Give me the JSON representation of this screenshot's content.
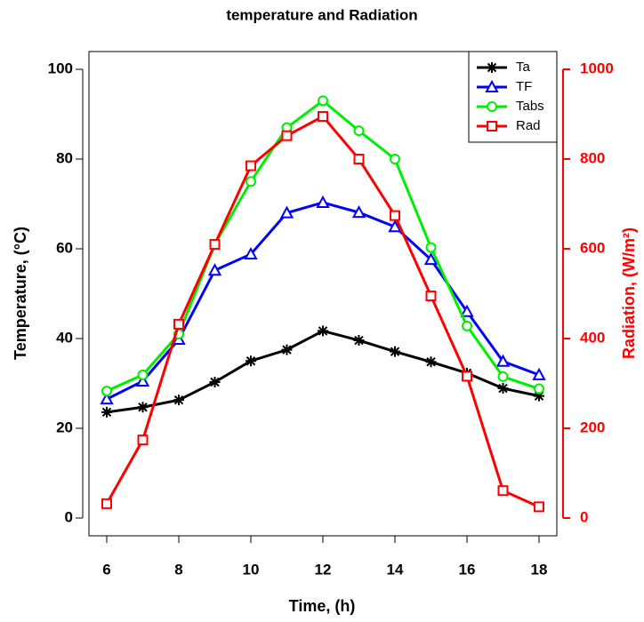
{
  "chart_data": {
    "type": "line",
    "title": "temperature and Radiation",
    "x_label": "Time, (h)",
    "y_label": "Temperature, (°C)",
    "y2_label": "Radiation, (W/m²)",
    "x": [
      6,
      7,
      8,
      9,
      10,
      11,
      12,
      13,
      14,
      15,
      16,
      17,
      18
    ],
    "xlim": [
      6,
      18
    ],
    "xticks": [
      6,
      8,
      10,
      12,
      14,
      16,
      18
    ],
    "ylim": [
      0,
      100
    ],
    "yticks": [
      0,
      20,
      40,
      60,
      80,
      100
    ],
    "y2lim": [
      0,
      1000
    ],
    "y2ticks": [
      0,
      200,
      400,
      600,
      800,
      1000
    ],
    "y2_color": "#ff0000",
    "legend": "top-right",
    "series": [
      {
        "name": "Ta",
        "color": "#000000",
        "marker": "star",
        "values": [
          23.6,
          24.7,
          26.3,
          30.3,
          35.0,
          37.5,
          41.7,
          39.6,
          37.1,
          34.8,
          32.3,
          28.9,
          27.2
        ]
      },
      {
        "name": "TF",
        "color": "#0000ff",
        "marker": "triangle",
        "values": [
          26.5,
          30.5,
          39.8,
          55.2,
          58.8,
          68.0,
          70.3,
          68.1,
          64.9,
          57.6,
          46.0,
          34.9,
          31.9
        ]
      },
      {
        "name": "Tabs",
        "color": "#00ee00",
        "marker": "circle",
        "values": [
          28.3,
          31.9,
          41.0,
          61.0,
          75.0,
          87.0,
          93.0,
          86.3,
          80.0,
          60.3,
          42.8,
          31.5,
          28.8
        ]
      },
      {
        "name": "Rad",
        "color": "#ff0000",
        "marker": "square",
        "axis": "y2",
        "values": [
          32,
          174,
          432,
          610,
          785,
          852,
          895,
          800,
          674,
          495,
          316,
          61,
          25
        ]
      }
    ]
  }
}
